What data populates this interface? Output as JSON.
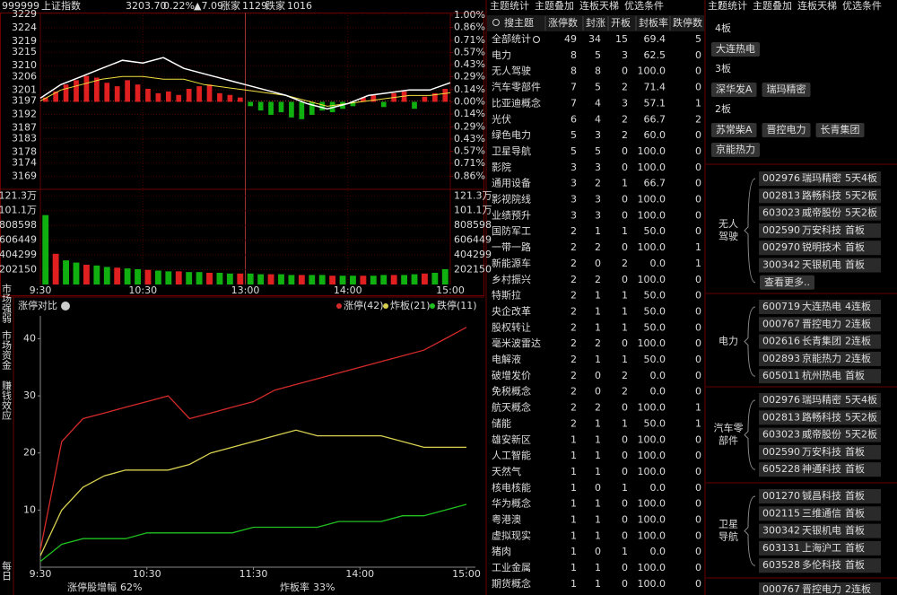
{
  "intraday": {
    "header": {
      "code": "999999",
      "name": "上证指数",
      "price": "3203.70",
      "pct": "0.22%",
      "change": "▲7.09",
      "up_label": "涨家",
      "up_count": "1129",
      "down_label": "跌家",
      "down_count": "1016"
    },
    "xlim": [
      0,
      240
    ],
    "ylim": [
      3164.6,
      3229
    ],
    "y2lim": [
      -1.0,
      1.01
    ],
    "yticks": [
      3229,
      3224,
      3219,
      3215,
      3210,
      3206,
      3201,
      3197,
      3192,
      3187,
      3183,
      3178,
      3174,
      3169
    ],
    "y2ticks": [
      {
        "value": 1.0,
        "label": "1.00%"
      },
      {
        "value": 0.86,
        "label": "0.86%"
      },
      {
        "value": 0.71,
        "label": "0.71%"
      },
      {
        "value": 0.57,
        "label": "0.57%"
      },
      {
        "value": 0.43,
        "label": "0.43%"
      },
      {
        "value": 0.29,
        "label": "0.29%"
      },
      {
        "value": 0.14,
        "label": "0.14%"
      },
      {
        "value": 0.0,
        "label": "0.00%"
      },
      {
        "value": -0.14,
        "label": "0.14%"
      },
      {
        "value": -0.29,
        "label": "0.29%"
      },
      {
        "value": -0.43,
        "label": "0.43%"
      },
      {
        "value": -0.57,
        "label": "0.57%"
      },
      {
        "value": -0.71,
        "label": "0.71%"
      },
      {
        "value": -0.86,
        "label": "0.86%"
      }
    ],
    "xticks": [
      {
        "value": 0,
        "label": "9:30"
      },
      {
        "value": 60,
        "label": "10:30"
      },
      {
        "value": 120,
        "label": "13:00"
      },
      {
        "value": 180,
        "label": "14:00"
      },
      {
        "value": 240,
        "label": "15:00"
      }
    ],
    "x": [
      0,
      12,
      24,
      36,
      48,
      60,
      72,
      84,
      96,
      108,
      120,
      132,
      144,
      156,
      168,
      180,
      192,
      204,
      216,
      228,
      240
    ],
    "price_values": [
      3198,
      3203,
      3206,
      3209,
      3212,
      3211,
      3213,
      3209,
      3207,
      3205,
      3203,
      3201,
      3199,
      3196,
      3194,
      3196,
      3199,
      3200,
      3201,
      3201,
      3203.7
    ],
    "avg_values": [
      3197,
      3201,
      3203,
      3205,
      3206,
      3206,
      3205,
      3205,
      3203,
      3202,
      3201,
      3200,
      3199,
      3197,
      3195,
      3196,
      3197,
      3198,
      3199,
      3199,
      3200
    ],
    "breadth_values": [
      0.05,
      0.12,
      0.2,
      0.25,
      0.3,
      0.28,
      0.22,
      0.18,
      0.25,
      0.2,
      0.15,
      0.1,
      0.12,
      0.08,
      0.15,
      0.18,
      0.2,
      0.1,
      0.08,
      0.05,
      -0.05,
      -0.1,
      -0.15,
      -0.12,
      -0.18,
      -0.2,
      -0.15,
      -0.1,
      -0.12,
      -0.08,
      -0.05,
      0.05,
      0.08,
      -0.06,
      0.1,
      0.12,
      -0.08,
      0.06,
      0.1,
      0.15
    ],
    "volume_ylim": [
      0,
      1290000
    ],
    "volume_ticks": [
      {
        "value": 1213000,
        "label": "121.3万"
      },
      {
        "value": 1011000,
        "label": "101.1万"
      },
      808598,
      606449,
      404299,
      202150
    ],
    "volume_values": [
      950000,
      420000,
      330000,
      300000,
      270000,
      260000,
      240000,
      230000,
      220000,
      210000,
      200000,
      190000,
      180000,
      180000,
      170000,
      170000,
      160000,
      160000,
      150000,
      150000,
      150000,
      140000,
      140000,
      140000,
      130000,
      130000,
      130000,
      130000,
      120000,
      120000,
      120000,
      120000,
      120000,
      130000,
      130000,
      130000,
      140000,
      150000,
      160000,
      210000
    ]
  },
  "side_tabs": [
    "市场强弱",
    "市场资金",
    "赚钱效应",
    "每日"
  ],
  "limit_chart": {
    "title": "涨停对比",
    "xlim": [
      0,
      240
    ],
    "ylim": [
      0,
      44
    ],
    "yticks": [
      10,
      20,
      30,
      40
    ],
    "xticks": [
      {
        "value": 0,
        "label": "9:30"
      },
      {
        "value": 60,
        "label": "10:30"
      },
      {
        "value": 120,
        "label": "11:30"
      },
      {
        "value": 180,
        "label": "14:00"
      },
      {
        "value": 240,
        "label": "15:00"
      }
    ],
    "x": [
      0,
      12,
      24,
      36,
      48,
      60,
      72,
      84,
      96,
      108,
      120,
      132,
      144,
      156,
      168,
      180,
      192,
      204,
      216,
      228,
      240
    ],
    "series": [
      {
        "name": "涨停(42)",
        "color": "#d42a2a",
        "values": [
          3,
          22,
          26,
          27,
          28,
          29,
          30,
          26,
          27,
          28,
          29,
          31,
          32,
          33,
          34,
          35,
          36,
          37,
          38,
          40,
          42
        ]
      },
      {
        "name": "炸板(21)",
        "color": "#d8d050",
        "values": [
          2,
          10,
          14,
          16,
          17,
          17,
          17,
          18,
          20,
          21,
          22,
          23,
          24,
          23,
          23,
          23,
          23,
          22,
          21,
          21,
          21
        ]
      },
      {
        "name": "跌停(11)",
        "color": "#20c020",
        "values": [
          1,
          4,
          5,
          5,
          5,
          6,
          6,
          6,
          6,
          6,
          7,
          7,
          7,
          7,
          8,
          8,
          8,
          9,
          9,
          10,
          11
        ]
      }
    ],
    "footer": [
      {
        "label": "涨停股增幅",
        "value": "62%"
      },
      {
        "label": "炸板率",
        "value": "33%"
      }
    ]
  },
  "theme_table": {
    "tabs": [
      "主题统计",
      "主题叠加",
      "连板天梯",
      "优选条件",
      "?"
    ],
    "columns": [
      "搜主题",
      "涨停数",
      "封涨",
      "开板",
      "封板率",
      "跌停数"
    ],
    "rows": [
      [
        "全部统计",
        "49",
        "34",
        "15",
        "69.4",
        "5"
      ],
      [
        "电力",
        "8",
        "5",
        "3",
        "62.5",
        "0"
      ],
      [
        "无人驾驶",
        "8",
        "8",
        "0",
        "100.0",
        "0"
      ],
      [
        "汽车零部件",
        "7",
        "5",
        "2",
        "71.4",
        "0"
      ],
      [
        "比亚迪概念",
        "7",
        "4",
        "3",
        "57.1",
        "1"
      ],
      [
        "光伏",
        "6",
        "4",
        "2",
        "66.7",
        "2"
      ],
      [
        "绿色电力",
        "5",
        "3",
        "2",
        "60.0",
        "0"
      ],
      [
        "卫星导航",
        "5",
        "5",
        "0",
        "100.0",
        "0"
      ],
      [
        "影院",
        "3",
        "3",
        "0",
        "100.0",
        "0"
      ],
      [
        "通用设备",
        "3",
        "2",
        "1",
        "66.7",
        "0"
      ],
      [
        "影视院线",
        "3",
        "3",
        "0",
        "100.0",
        "0"
      ],
      [
        "业绩预升",
        "3",
        "3",
        "0",
        "100.0",
        "0"
      ],
      [
        "国防军工",
        "2",
        "1",
        "1",
        "50.0",
        "0"
      ],
      [
        "一带一路",
        "2",
        "2",
        "0",
        "100.0",
        "1"
      ],
      [
        "新能源车",
        "2",
        "0",
        "2",
        "0.0",
        "1"
      ],
      [
        "乡村振兴",
        "2",
        "2",
        "0",
        "100.0",
        "0"
      ],
      [
        "特斯拉",
        "2",
        "1",
        "1",
        "50.0",
        "0"
      ],
      [
        "央企改革",
        "2",
        "1",
        "1",
        "50.0",
        "0"
      ],
      [
        "股权转让",
        "2",
        "1",
        "1",
        "50.0",
        "0"
      ],
      [
        "毫米波雷达",
        "2",
        "2",
        "0",
        "100.0",
        "0"
      ],
      [
        "电解液",
        "2",
        "1",
        "1",
        "50.0",
        "0"
      ],
      [
        "破增发价",
        "2",
        "0",
        "2",
        "0.0",
        "0"
      ],
      [
        "免税概念",
        "2",
        "0",
        "2",
        "0.0",
        "0"
      ],
      [
        "航天概念",
        "2",
        "2",
        "0",
        "100.0",
        "1"
      ],
      [
        "储能",
        "2",
        "1",
        "1",
        "50.0",
        "1"
      ],
      [
        "雄安新区",
        "1",
        "1",
        "0",
        "100.0",
        "0"
      ],
      [
        "人工智能",
        "1",
        "1",
        "0",
        "100.0",
        "0"
      ],
      [
        "天然气",
        "1",
        "1",
        "0",
        "100.0",
        "0"
      ],
      [
        "核电核能",
        "1",
        "0",
        "1",
        "0.0",
        "0"
      ],
      [
        "华为概念",
        "1",
        "1",
        "0",
        "100.0",
        "0"
      ],
      [
        "粤港澳",
        "1",
        "1",
        "0",
        "100.0",
        "0"
      ],
      [
        "虚拟现实",
        "1",
        "1",
        "0",
        "100.0",
        "0"
      ],
      [
        "猪肉",
        "1",
        "0",
        "1",
        "0.0",
        "0"
      ],
      [
        "工业金属",
        "1",
        "1",
        "0",
        "100.0",
        "0"
      ],
      [
        "期货概念",
        "1",
        "1",
        "0",
        "100.0",
        "0"
      ]
    ]
  },
  "ladder": {
    "tabs": [
      "主题统计",
      "主题叠加",
      "连板天梯",
      "优选条件",
      "?"
    ],
    "levels": [
      {
        "label": "4板",
        "stocks": [
          "大连热电"
        ]
      },
      {
        "label": "3板",
        "stocks": [
          "深华发A",
          "瑞玛精密"
        ]
      },
      {
        "label": "2板",
        "stocks": [
          "苏常柴A",
          "晋控电力",
          "长青集团",
          "京能热力"
        ]
      }
    ],
    "groups": [
      {
        "name": "无人驾驶",
        "stocks": [
          {
            "code": "002976",
            "name": "瑞玛精密",
            "status": "5天4板",
            "highlight": true
          },
          {
            "code": "002813",
            "name": "路畅科技",
            "status": "5天2板",
            "highlight": false
          },
          {
            "code": "603023",
            "name": "威帝股份",
            "status": "5天2板",
            "highlight": true
          },
          {
            "code": "002590",
            "name": "万安科技",
            "status": "首板",
            "highlight": false
          },
          {
            "code": "002970",
            "name": "锐明技术",
            "status": "首板",
            "highlight": false
          },
          {
            "code": "300342",
            "name": "天银机电",
            "status": "首板",
            "highlight": false
          }
        ],
        "more": "查看更多.."
      },
      {
        "name": "电力",
        "stocks": [
          {
            "code": "600719",
            "name": "大连热电",
            "status": "4连板",
            "highlight": true
          },
          {
            "code": "000767",
            "name": "晋控电力",
            "status": "2连板",
            "highlight": false
          },
          {
            "code": "002616",
            "name": "长青集团",
            "status": "2连板",
            "highlight": true
          },
          {
            "code": "002893",
            "name": "京能热力",
            "status": "2连板",
            "highlight": true
          },
          {
            "code": "605011",
            "name": "杭州热电",
            "status": "首板",
            "highlight": false
          }
        ]
      },
      {
        "name": "汽车零部件",
        "stocks": [
          {
            "code": "002976",
            "name": "瑞玛精密",
            "status": "5天4板",
            "highlight": true
          },
          {
            "code": "002813",
            "name": "路畅科技",
            "status": "5天2板",
            "highlight": false
          },
          {
            "code": "603023",
            "name": "威帝股份",
            "status": "5天2板",
            "highlight": true
          },
          {
            "code": "002590",
            "name": "万安科技",
            "status": "首板",
            "highlight": false
          },
          {
            "code": "605228",
            "name": "神通科技",
            "status": "首板",
            "highlight": false
          }
        ]
      },
      {
        "name": "卫星导航",
        "stocks": [
          {
            "code": "001270",
            "name": "铖昌科技",
            "status": "首板",
            "highlight": false
          },
          {
            "code": "002115",
            "name": "三维通信",
            "status": "首板",
            "highlight": false
          },
          {
            "code": "300342",
            "name": "天银机电",
            "status": "首板",
            "highlight": false
          },
          {
            "code": "603131",
            "name": "上海沪工",
            "status": "首板",
            "highlight": false
          },
          {
            "code": "603528",
            "name": "多伦科技",
            "status": "首板",
            "highlight": false
          }
        ]
      },
      {
        "name": "",
        "stocks": [
          {
            "code": "000767",
            "name": "晋控电力",
            "status": "2连板",
            "highlight": false
          }
        ]
      }
    ]
  }
}
